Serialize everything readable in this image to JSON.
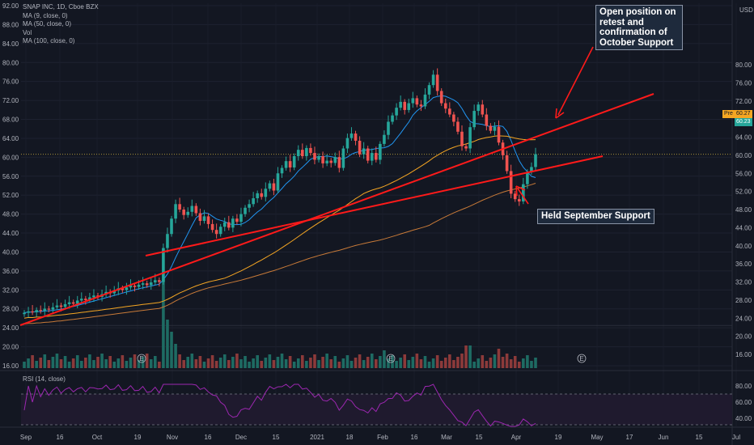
{
  "legend": {
    "symbol": "SNAP INC, 1D, Cboe BZX",
    "ma9": "MA (9, close, 0)",
    "ma50": "MA (50, close, 0)",
    "vol": "Vol",
    "ma100": "MA (100, close, 0)"
  },
  "rsi_legend": "RSI (14, close)",
  "currency": "USD",
  "price_tags": {
    "pre": "Pre",
    "price1": "60.27",
    "price2": "60.23"
  },
  "annotations": {
    "retest": "Open position on retest and confirmation of October Support",
    "held": "Held September Support"
  },
  "earnings_marker": "E",
  "colors": {
    "up": "#26a69a",
    "down": "#ef5350",
    "ma9": "#2196f3",
    "ma50": "#f5a623",
    "ma100": "#c87a38",
    "rsi": "#9c27b0",
    "trend": "#ff1a1a"
  },
  "chart_data": {
    "type": "candlestick",
    "left_axis_ticks": [
      "92.00",
      "88.00",
      "84.00",
      "80.00",
      "76.00",
      "72.00",
      "68.00",
      "64.00",
      "60.00",
      "56.00",
      "52.00",
      "48.00",
      "44.00",
      "40.00",
      "36.00",
      "32.00",
      "28.00",
      "24.00",
      "20.00",
      "16.00"
    ],
    "right_axis_ticks": [
      "80.00",
      "76.00",
      "72.00",
      "68.00",
      "64.00",
      "60.00",
      "56.00",
      "52.00",
      "48.00",
      "44.00",
      "40.00",
      "36.00",
      "32.00",
      "28.00",
      "24.00",
      "20.00",
      "16.00"
    ],
    "rsi_ticks": [
      "80.00",
      "60.00",
      "40.00"
    ],
    "x_ticks": [
      "Sep",
      "16",
      "Oct",
      "19",
      "Nov",
      "16",
      "Dec",
      "15",
      "2021",
      "18",
      "Feb",
      "16",
      "Mar",
      "15",
      "Apr",
      "19",
      "May",
      "17",
      "Jun",
      "15",
      "Jul"
    ],
    "closes": [
      25.2,
      25.5,
      25.3,
      25.8,
      25.6,
      26.1,
      25.9,
      26.4,
      26.8,
      26.5,
      27.1,
      27.5,
      27.2,
      27.9,
      28.3,
      28.0,
      28.6,
      29.0,
      28.7,
      29.3,
      29.8,
      29.5,
      30.1,
      30.6,
      30.2,
      30.8,
      31.2,
      30.9,
      31.4,
      31.7,
      31.3,
      31.9,
      32.4,
      32.0,
      39.5,
      42.6,
      46.0,
      49.2,
      48.0,
      46.8,
      47.5,
      48.8,
      47.2,
      45.5,
      46.5,
      44.8,
      43.5,
      42.6,
      44.2,
      45.2,
      44.0,
      46.0,
      45.3,
      47.0,
      48.4,
      49.2,
      50.5,
      51.6,
      50.8,
      52.6,
      53.8,
      52.2,
      56.0,
      57.2,
      58.7,
      57.3,
      59.8,
      61.2,
      59.8,
      61.6,
      60.5,
      59.0,
      59.8,
      58.2,
      58.8,
      58.3,
      59.6,
      57.2,
      61.5,
      63.8,
      64.8,
      63.2,
      60.2,
      61.5,
      58.8,
      60.5,
      59.0,
      62.5,
      64.5,
      67.4,
      68.8,
      70.5,
      71.8,
      70.0,
      71.5,
      72.6,
      71.2,
      70.8,
      73.4,
      75.5,
      77.8,
      74.2,
      71.5,
      70.3,
      69.0,
      67.4,
      65.2,
      62.0,
      61.5,
      66.2,
      69.8,
      71.2,
      69.0,
      66.5,
      65.4,
      66.3,
      62.8,
      60.0,
      56.5,
      51.5,
      50.3,
      49.8,
      53.6,
      56.3,
      57.4,
      60.23
    ],
    "annotation_points": {
      "retest_price": 60.27,
      "held_low": 48.0
    },
    "volume_note": "relative volume bars, spike near Oct 19 earnings"
  }
}
